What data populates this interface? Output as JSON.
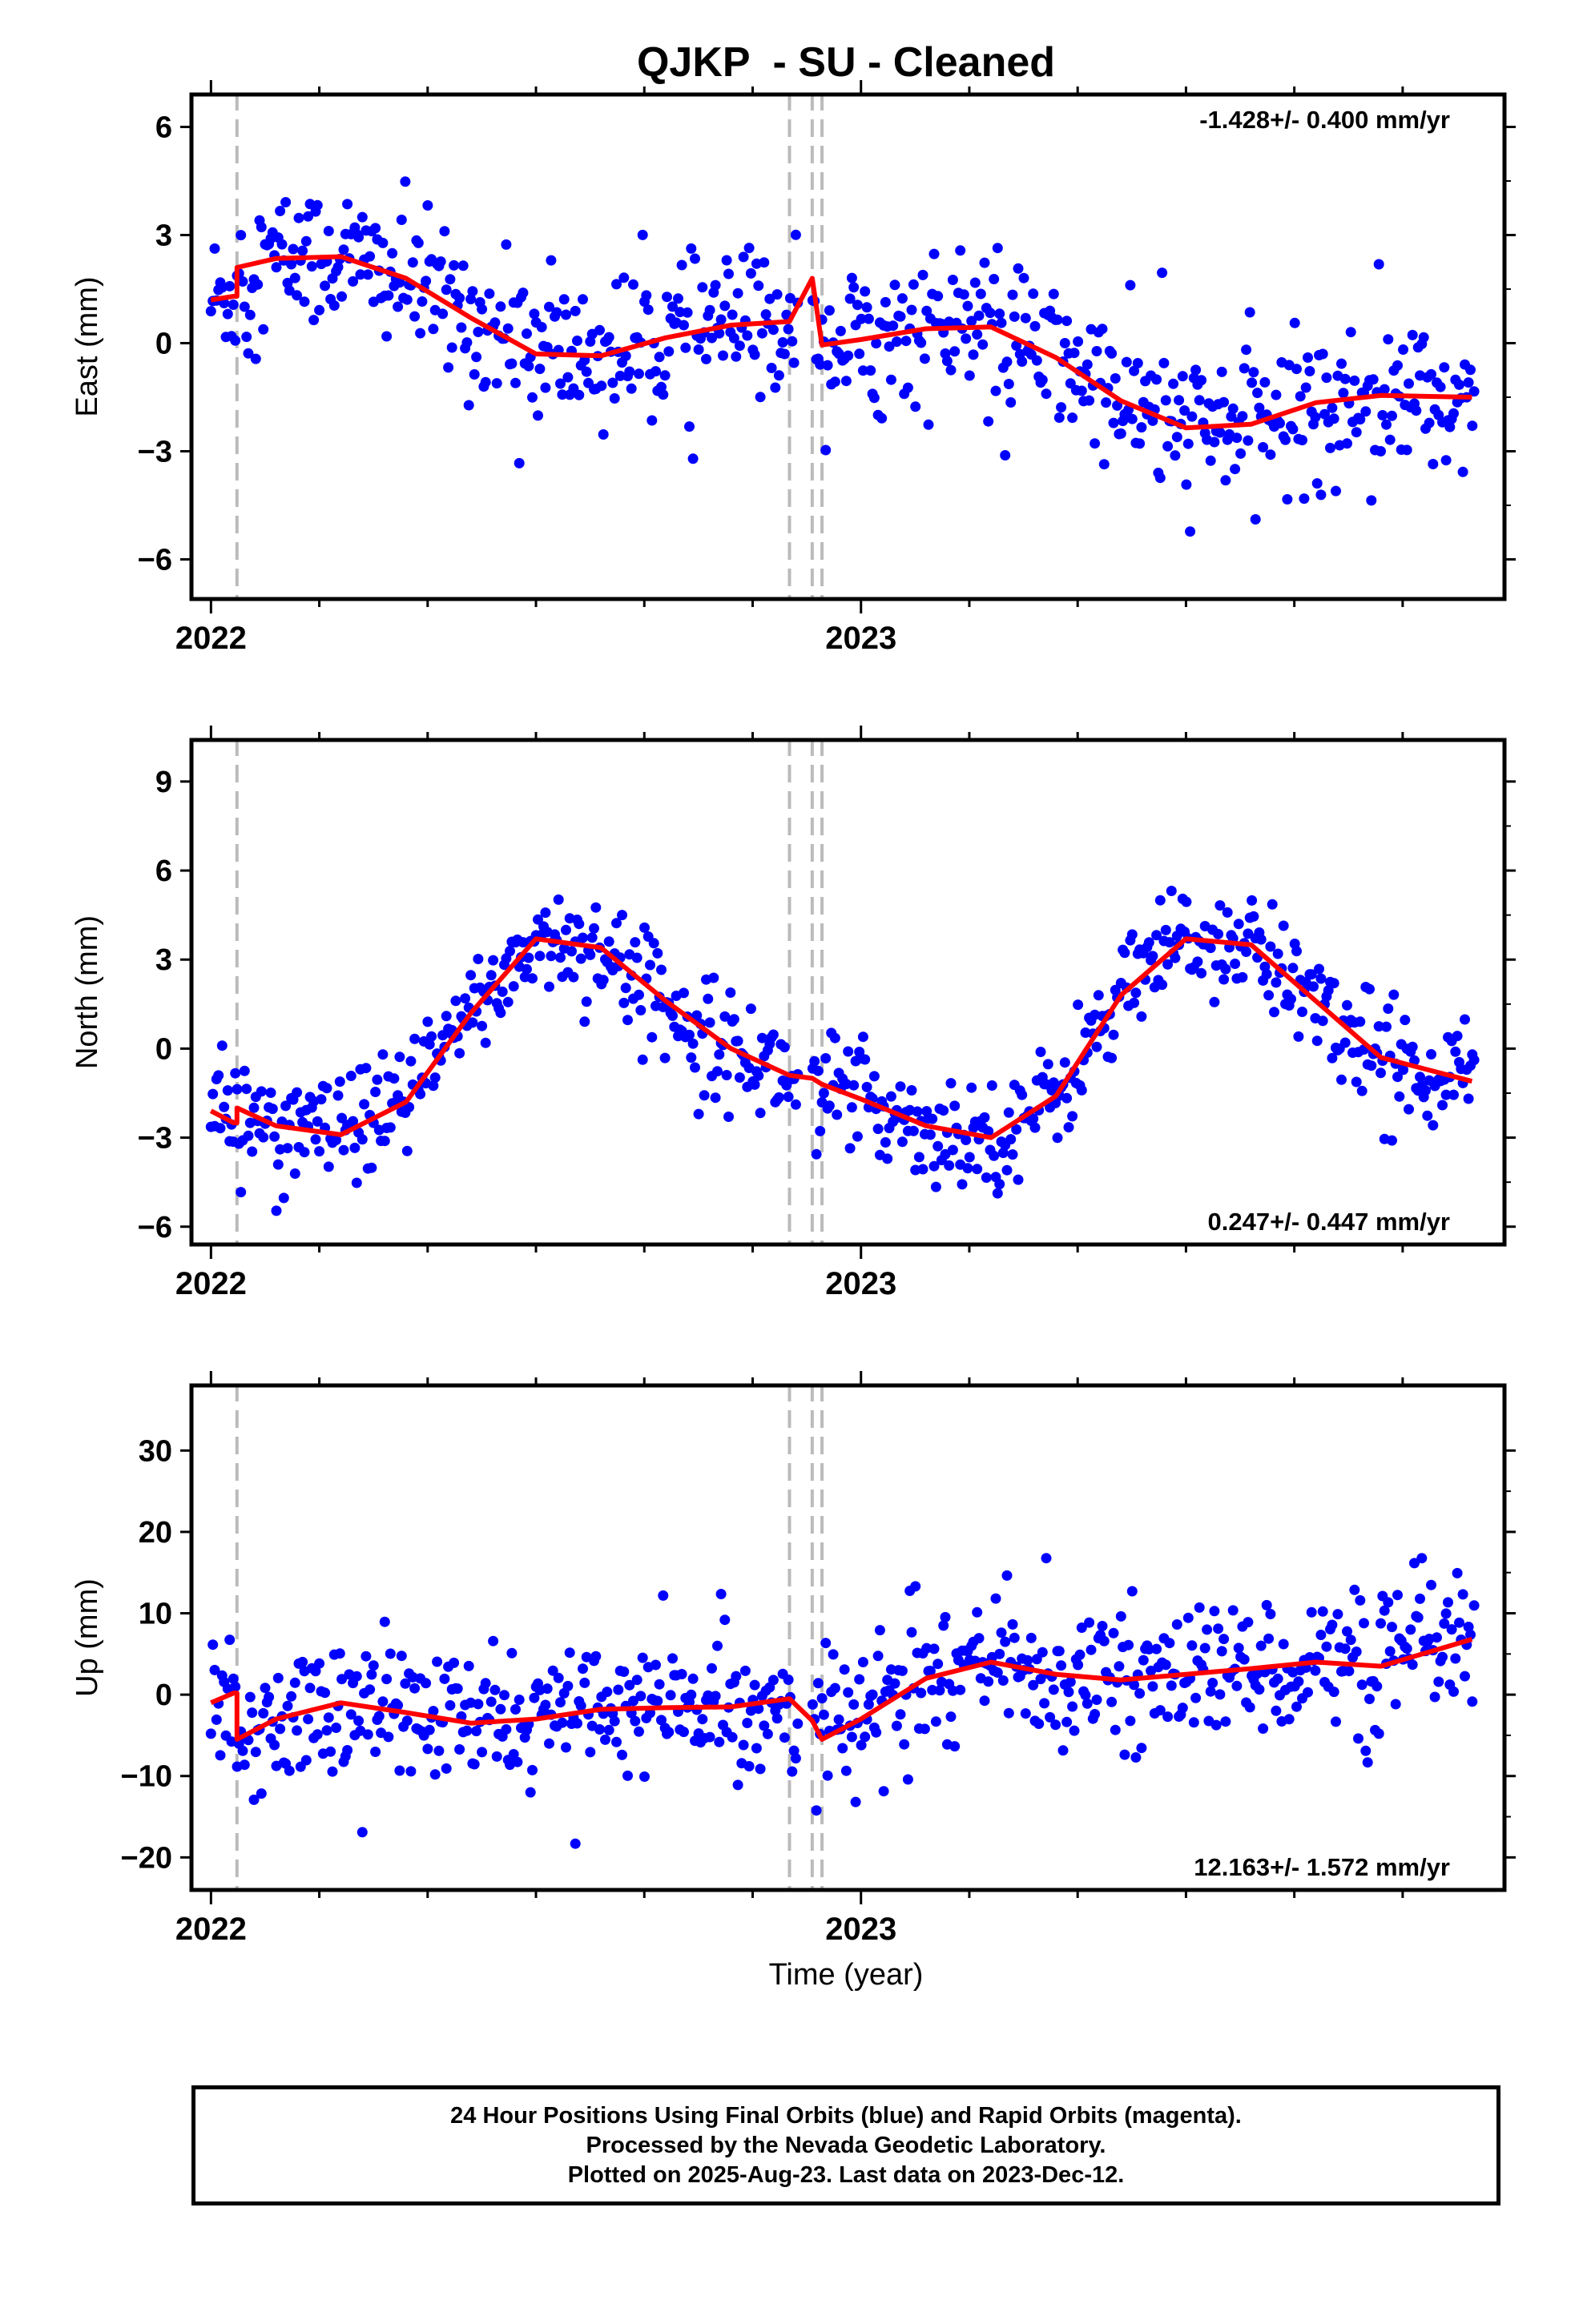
{
  "title": "QJKP  - SU - Cleaned",
  "xlabel": "Time (year)",
  "footer": {
    "line1": "24 Hour Positions Using Final Orbits (blue) and Rapid Orbits (magenta).",
    "line2": "Processed by the Nevada Geodetic Laboratory.",
    "line3": "Plotted on 2025-Aug-23. Last data on 2023-Dec-12."
  },
  "colors": {
    "data": "#0000ff",
    "model": "#ff0000",
    "breaks": "#bbbbbb",
    "frame": "#000000"
  },
  "chart_data": [
    {
      "type": "scatter",
      "component": "east",
      "ylabel": "East (mm)",
      "rate_text": "-1.428+/- 0.400 mm/yr",
      "rate_position": "top-right",
      "xlim": [
        2021.97,
        2023.99
      ],
      "ylim": [
        -7.1,
        6.9
      ],
      "yticks": [
        6,
        3,
        0,
        -3,
        -6
      ],
      "ytick_labels": [
        "6",
        "3",
        "0",
        "−3",
        "−6"
      ],
      "xticks": [
        2022,
        2023
      ],
      "xtick_labels": [
        "2022",
        "2023"
      ],
      "break_dates": [
        2022.04,
        2022.89,
        2022.925,
        2022.94
      ],
      "scatter_noise": 1.35,
      "model_line": {
        "x": [
          2022.0,
          2022.035,
          2022.04,
          2022.1,
          2022.2,
          2022.3,
          2022.4,
          2022.5,
          2022.6,
          2022.7,
          2022.8,
          2022.89,
          2022.925,
          2022.94,
          2023.0,
          2023.1,
          2023.2,
          2023.3,
          2023.4,
          2023.5,
          2023.6,
          2023.7,
          2023.8,
          2023.94
        ],
        "y": [
          1.2,
          1.3,
          2.1,
          2.35,
          2.4,
          1.8,
          0.7,
          -0.3,
          -0.35,
          0.15,
          0.5,
          0.6,
          1.8,
          -0.05,
          0.1,
          0.4,
          0.45,
          -0.4,
          -1.6,
          -2.35,
          -2.25,
          -1.65,
          -1.45,
          -1.5
        ]
      }
    },
    {
      "type": "scatter",
      "component": "north",
      "ylabel": "North (mm)",
      "rate_text": "0.247+/- 0.447 mm/yr",
      "rate_position": "bottom-right",
      "xlim": [
        2021.97,
        2023.99
      ],
      "ylim": [
        -6.6,
        10.4
      ],
      "yticks": [
        9,
        6,
        3,
        0,
        -3,
        -6
      ],
      "ytick_labels": [
        "9",
        "6",
        "3",
        "0",
        "−3",
        "−6"
      ],
      "xticks": [
        2022,
        2023
      ],
      "xtick_labels": [
        "2022",
        "2023"
      ],
      "break_dates": [
        2022.04,
        2022.89,
        2022.925,
        2022.94
      ],
      "scatter_noise": 1.2,
      "model_line": {
        "x": [
          2022.0,
          2022.035,
          2022.04,
          2022.1,
          2022.2,
          2022.3,
          2022.4,
          2022.5,
          2022.6,
          2022.7,
          2022.8,
          2022.89,
          2022.925,
          2022.94,
          2023.0,
          2023.1,
          2023.2,
          2023.3,
          2023.4,
          2023.5,
          2023.6,
          2023.7,
          2023.8,
          2023.94
        ],
        "y": [
          -2.1,
          -2.5,
          -2.0,
          -2.6,
          -2.9,
          -1.8,
          1.2,
          3.7,
          3.4,
          1.6,
          0.0,
          -0.9,
          -1.0,
          -1.2,
          -1.7,
          -2.6,
          -3.0,
          -1.6,
          1.8,
          3.7,
          3.5,
          1.6,
          -0.3,
          -1.1
        ]
      }
    },
    {
      "type": "scatter",
      "component": "up",
      "ylabel": "Up (mm)",
      "rate_text": "12.163+/- 1.572 mm/yr",
      "rate_position": "bottom-right",
      "xlim": [
        2021.97,
        2023.99
      ],
      "ylim": [
        -24,
        38
      ],
      "yticks": [
        30,
        20,
        10,
        0,
        -10,
        -20
      ],
      "ytick_labels": [
        "30",
        "20",
        "10",
        "0",
        "−10",
        "−20"
      ],
      "xticks": [
        2022,
        2023
      ],
      "xtick_labels": [
        "2022",
        "2023"
      ],
      "break_dates": [
        2022.04,
        2022.89,
        2022.925,
        2022.94
      ],
      "scatter_noise": 5.5,
      "model_line": {
        "x": [
          2022.0,
          2022.035,
          2022.04,
          2022.1,
          2022.2,
          2022.3,
          2022.4,
          2022.5,
          2022.6,
          2022.7,
          2022.8,
          2022.89,
          2022.925,
          2022.94,
          2023.0,
          2023.1,
          2023.2,
          2023.3,
          2023.4,
          2023.5,
          2023.6,
          2023.7,
          2023.8,
          2023.94
        ],
        "y": [
          -1.0,
          0.2,
          -5.5,
          -3.0,
          -1.0,
          -2.2,
          -3.5,
          -3.0,
          -1.8,
          -1.6,
          -1.5,
          -0.5,
          -3.2,
          -5.5,
          -3.0,
          2.0,
          4.0,
          2.5,
          1.8,
          2.5,
          3.2,
          4.0,
          3.5,
          6.8
        ]
      }
    }
  ]
}
